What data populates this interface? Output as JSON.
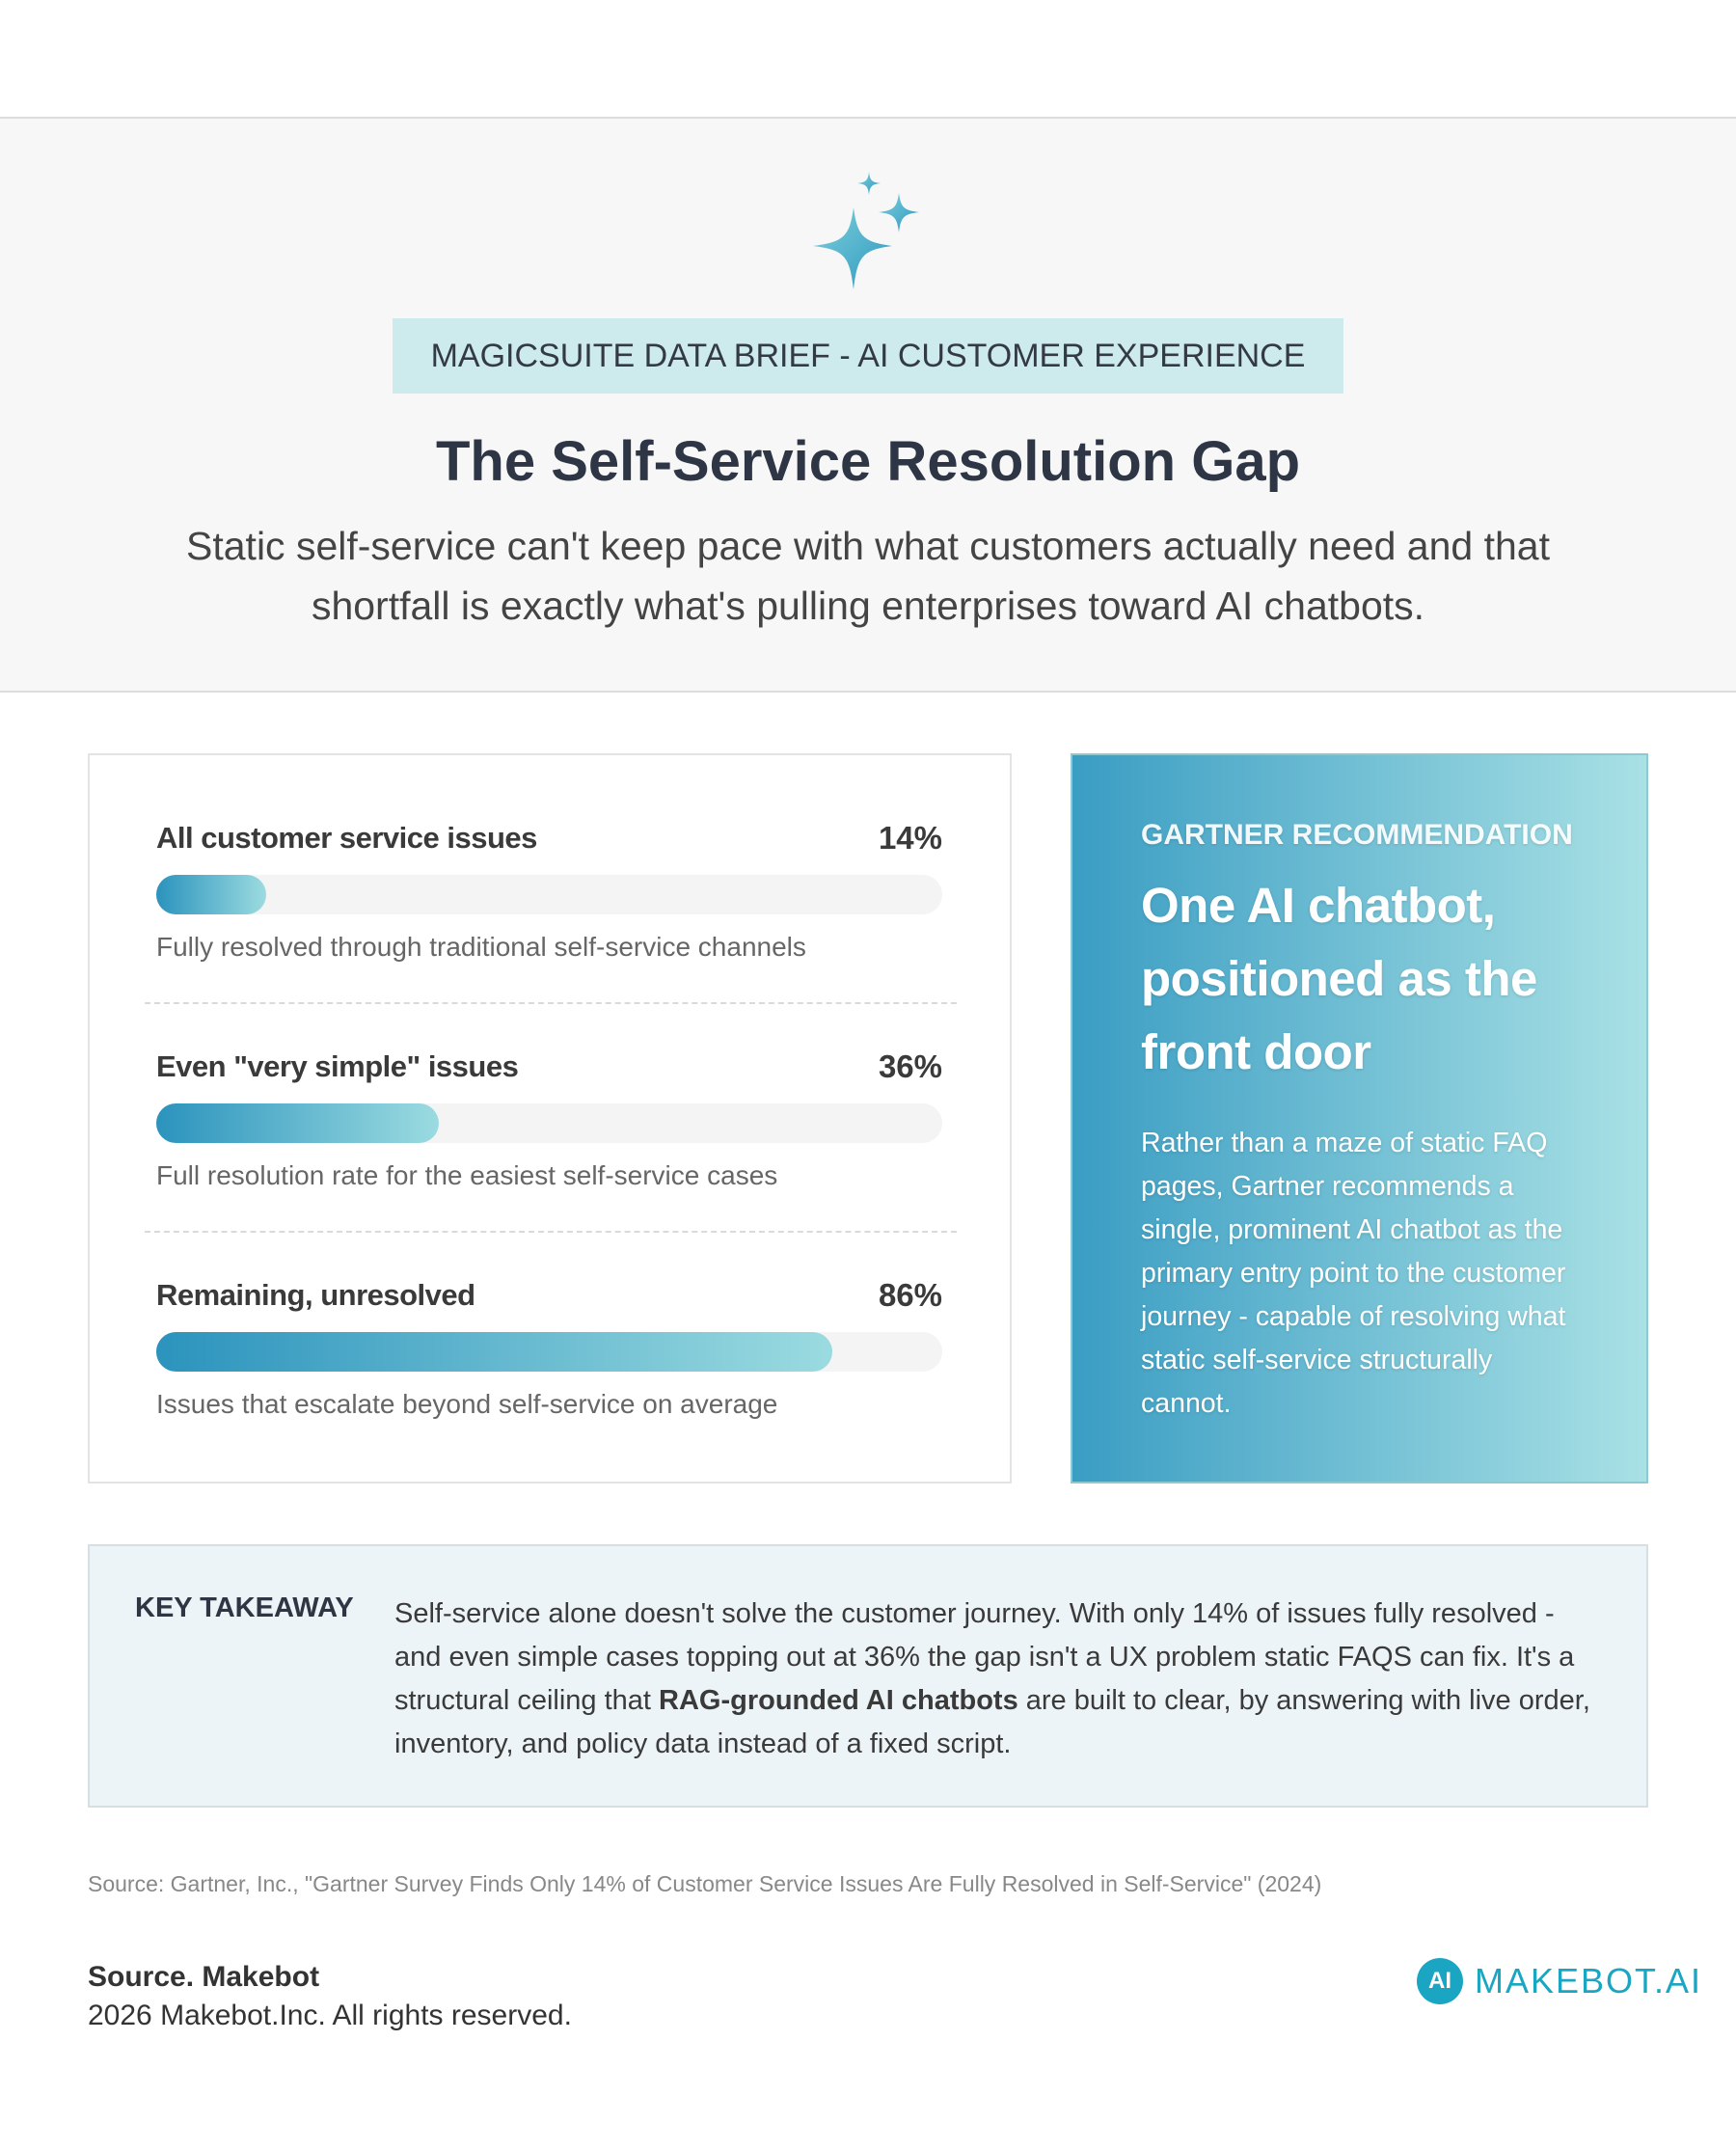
{
  "header": {
    "badge": "MAGICSUITE DATA BRIEF - AI CUSTOMER EXPERIENCE",
    "title": "The Self-Service Resolution Gap",
    "subtitle": "Static self-service can't keep pace with what customers actually need and that shortfall is exactly what's pulling enterprises toward AI chatbots."
  },
  "chart_data": {
    "type": "bar",
    "orientation": "horizontal",
    "categories": [
      "All customer service issues",
      "Even \"very simple\" issues",
      "Remaining, unresolved"
    ],
    "values": [
      14,
      36,
      86
    ],
    "value_labels": [
      "14%",
      "36%",
      "86%"
    ],
    "descriptions": [
      "Fully resolved through traditional self-service channels",
      "Full resolution rate for the easiest self-service cases",
      "Issues that escalate beyond self-service on average"
    ],
    "xlim": [
      0,
      100
    ],
    "colors": [
      "#2b93bd",
      "#9bdbe0"
    ]
  },
  "recommendation": {
    "kicker": "GARTNER RECOMMENDATION",
    "headline": "One AI chatbot, positioned as the front door",
    "body": "Rather than a maze of static FAQ pages, Gartner recommends a single, prominent AI chatbot as the primary entry point to the customer journey - capable of resolving what static self-service structurally cannot."
  },
  "takeaway": {
    "label": "KEY TAKEAWAY",
    "text_before": "Self-service alone doesn't solve the customer journey. With only 14% of issues fully resolved - and even simple cases topping out at 36% the gap isn't a UX problem static FAQS can fix. It's a structural ceiling that ",
    "emphasis": "RAG-grounded AI chatbots",
    "text_after": " are built to clear, by answering with live order, inventory, and policy data instead of a fixed script."
  },
  "source": "Source: Gartner, Inc., \"Gartner Survey Finds Only 14% of Customer Service Issues Are Fully Resolved in Self-Service\" (2024)",
  "footer": {
    "credit": "Source. Makebot",
    "copyright": "2026 Makebot.Inc. All rights reserved.",
    "logo_mark": "AI",
    "logo_text": "MAKEBOT.AI"
  }
}
